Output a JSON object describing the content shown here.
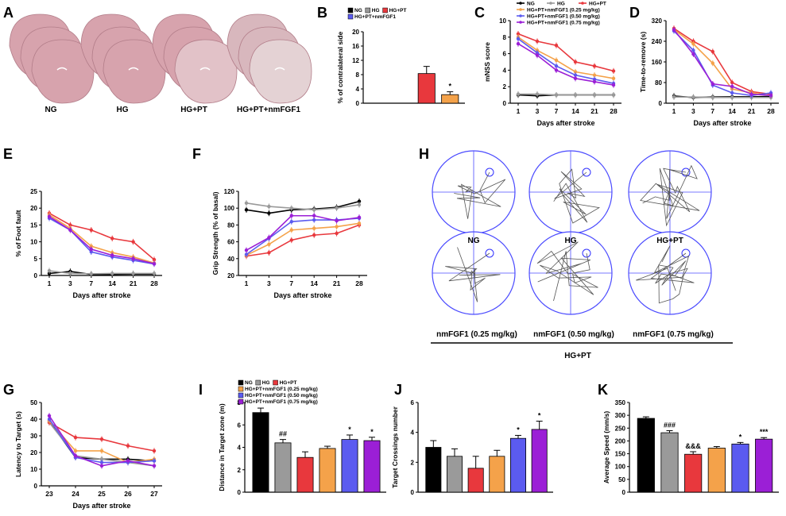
{
  "panel_letters": [
    "A",
    "B",
    "C",
    "D",
    "E",
    "F",
    "G",
    "H",
    "I",
    "J",
    "K"
  ],
  "colors": {
    "NG": "#000000",
    "HG": "#9a9a9a",
    "HGPT": "#e8383d",
    "LOW": "#f4a24a",
    "MID": "#5b5bf0",
    "HIGH": "#9b1fd6"
  },
  "legend": {
    "NG": "NG",
    "HG": "HG",
    "HGPT": "HG+PT",
    "LOW": "HG+PT+nmFGF1 (0.25 mg/kg)",
    "MID": "HG+PT+nmFGF1 (0.50 mg/kg)",
    "HIGH": "HG+PT+nmFGF1 (0.75 mg/kg)",
    "PTFGF": "HG+PT+nmFGF1"
  },
  "panelA": {
    "labels": [
      "NG",
      "HG",
      "HG+PT",
      "HG+PT+nmFGF1"
    ]
  },
  "panelH": {
    "row1": [
      "NG",
      "HG",
      "HG+PT"
    ],
    "row2": [
      "nmFGF1 (0.25 mg/kg)",
      "nmFGF1 (0.50 mg/kg)",
      "nmFGF1 (0.75 mg/kg)"
    ],
    "group": "HG+PT"
  },
  "chart_data": [
    {
      "id": "B",
      "type": "bar",
      "ylabel": "% of contralateral side",
      "ylim": [
        0,
        20
      ],
      "yticks": [
        0,
        4,
        8,
        12,
        16,
        20
      ],
      "series": [
        {
          "name": "NG",
          "value": 0
        },
        {
          "name": "HG",
          "value": 0
        },
        {
          "name": "HG+PT",
          "value": 8.3,
          "err": 2.0
        },
        {
          "name": "HG+PT+nmFGF1",
          "value": 2.4,
          "err": 0.8,
          "mark": "*"
        }
      ]
    },
    {
      "id": "C",
      "type": "line",
      "xlabel": "Days after stroke",
      "ylabel": "mNSS score",
      "ylim": [
        0,
        10
      ],
      "yticks": [
        0,
        2,
        4,
        6,
        8,
        10
      ],
      "x": [
        "1",
        "3",
        "7",
        "14",
        "21",
        "28"
      ],
      "series": [
        {
          "name": "NG",
          "values": [
            1,
            0.9,
            1,
            1,
            1,
            1
          ]
        },
        {
          "name": "HG",
          "values": [
            1.1,
            1.1,
            1,
            1,
            1,
            1
          ]
        },
        {
          "name": "HG+PT",
          "values": [
            8.4,
            7.5,
            7,
            5,
            4.5,
            3.9
          ]
        },
        {
          "name": "HG+PT+nmFGF1 (0.25 mg/kg)",
          "values": [
            8,
            6.4,
            5.2,
            3.8,
            3.4,
            3
          ]
        },
        {
          "name": "HG+PT+nmFGF1 (0.50 mg/kg)",
          "values": [
            7.8,
            6.1,
            4.5,
            3.4,
            2.9,
            2.4
          ]
        },
        {
          "name": "HG+PT+nmFGF1 (0.75 mg/kg)",
          "values": [
            7.2,
            5.8,
            4,
            3,
            2.6,
            2.2
          ]
        }
      ]
    },
    {
      "id": "D",
      "type": "line",
      "xlabel": "Days after stroke",
      "ylabel": "Time-to-remove (s)",
      "ylim": [
        0,
        320
      ],
      "yticks": [
        0,
        80,
        160,
        240,
        320
      ],
      "x": [
        "1",
        "3",
        "7",
        "14",
        "21",
        "28"
      ],
      "series": [
        {
          "name": "NG",
          "values": [
            28,
            22,
            24,
            25,
            25,
            26
          ]
        },
        {
          "name": "HG",
          "values": [
            24,
            24,
            22,
            22,
            22,
            22
          ]
        },
        {
          "name": "HG+PT",
          "values": [
            290,
            240,
            200,
            80,
            45,
            35
          ]
        },
        {
          "name": "HG+PT+nmFGF1 (0.25 mg/kg)",
          "values": [
            285,
            230,
            155,
            55,
            40,
            30
          ]
        },
        {
          "name": "HG+PT+nmFGF1 (0.50 mg/kg)",
          "values": [
            280,
            205,
            70,
            40,
            30,
            40
          ]
        },
        {
          "name": "HG+PT+nmFGF1 (0.75 mg/kg)",
          "values": [
            285,
            190,
            75,
            65,
            35,
            30
          ]
        }
      ]
    },
    {
      "id": "E",
      "type": "line",
      "xlabel": "Days after stroke",
      "ylabel": "% of Foot fault",
      "ylim": [
        0,
        25
      ],
      "yticks": [
        0,
        5,
        10,
        15,
        20,
        25
      ],
      "x": [
        "1",
        "3",
        "7",
        "14",
        "21",
        "28"
      ],
      "series": [
        {
          "name": "NG",
          "values": [
            0.6,
            1.2,
            0.3,
            0.3,
            0.4,
            0.4
          ]
        },
        {
          "name": "HG",
          "values": [
            1.4,
            0.6,
            0.5,
            0.6,
            0.6,
            0.6
          ]
        },
        {
          "name": "HG+PT",
          "values": [
            18.5,
            15,
            13.5,
            11,
            10,
            4.7
          ]
        },
        {
          "name": "HG+PT+nmFGF1 (0.25 mg/kg)",
          "values": [
            18,
            14,
            8.7,
            6.8,
            5.5,
            3.7
          ]
        },
        {
          "name": "HG+PT+nmFGF1 (0.50 mg/kg)",
          "values": [
            17,
            13.5,
            7,
            5.5,
            4.5,
            3.4
          ]
        },
        {
          "name": "HG+PT+nmFGF1 (0.75 mg/kg)",
          "values": [
            17.5,
            13.5,
            7.8,
            6,
            5,
            3.5
          ]
        }
      ]
    },
    {
      "id": "F",
      "type": "line",
      "xlabel": "Days after stroke",
      "ylabel": "Grip Strength (% of basal)",
      "ylim": [
        20,
        120
      ],
      "yticks": [
        20,
        40,
        60,
        80,
        100,
        120
      ],
      "x": [
        "1",
        "3",
        "7",
        "14",
        "21",
        "28"
      ],
      "series": [
        {
          "name": "NG",
          "values": [
            98,
            94,
            98,
            99,
            101,
            108
          ]
        },
        {
          "name": "HG",
          "values": [
            106,
            102,
            100,
            98,
            100,
            104
          ]
        },
        {
          "name": "HG+PT",
          "values": [
            43,
            47,
            62,
            68,
            70,
            80
          ]
        },
        {
          "name": "HG+PT+nmFGF1 (0.25 mg/kg)",
          "values": [
            44,
            57,
            74,
            76,
            78,
            82
          ]
        },
        {
          "name": "HG+PT+nmFGF1 (0.50 mg/kg)",
          "values": [
            45,
            64,
            84,
            86,
            86,
            88
          ]
        },
        {
          "name": "HG+PT+nmFGF1 (0.75 mg/kg)",
          "values": [
            50,
            65,
            91,
            91,
            85,
            89
          ]
        }
      ]
    },
    {
      "id": "G",
      "type": "line",
      "xlabel": "Days after stroke",
      "ylabel": "Latency to Target (s)",
      "ylim": [
        0,
        50
      ],
      "yticks": [
        0,
        10,
        20,
        30,
        40,
        50
      ],
      "x": [
        "23",
        "24",
        "25",
        "26",
        "27"
      ],
      "series": [
        {
          "name": "NG",
          "values": [
            39,
            17,
            16,
            16,
            15
          ]
        },
        {
          "name": "HG",
          "values": [
            38,
            18,
            16,
            14,
            12
          ]
        },
        {
          "name": "HG+PT",
          "values": [
            38,
            29,
            28,
            24,
            21
          ]
        },
        {
          "name": "HG+PT+nmFGF1 (0.25 mg/kg)",
          "values": [
            39,
            21,
            21,
            14,
            16
          ]
        },
        {
          "name": "HG+PT+nmFGF1 (0.50 mg/kg)",
          "values": [
            40,
            17,
            14,
            14,
            15
          ]
        },
        {
          "name": "HG+PT+nmFGF1 (0.75 mg/kg)",
          "values": [
            42,
            18,
            12,
            15,
            12
          ]
        }
      ]
    },
    {
      "id": "I",
      "type": "bar",
      "ylabel": "Distance in Target zone (m)",
      "ylim": [
        0,
        8
      ],
      "yticks": [
        0,
        2,
        4,
        6,
        8
      ],
      "series": [
        {
          "name": "NG",
          "value": 7.1,
          "err": 0.4
        },
        {
          "name": "HG",
          "value": 4.4,
          "err": 0.3,
          "mark": "##"
        },
        {
          "name": "HG+PT",
          "value": 3.1,
          "err": 0.5
        },
        {
          "name": "HG+PT+nmFGF1 (0.25 mg/kg)",
          "value": 3.9,
          "err": 0.2
        },
        {
          "name": "HG+PT+nmFGF1 (0.50 mg/kg)",
          "value": 4.7,
          "err": 0.4,
          "mark": "*"
        },
        {
          "name": "HG+PT+nmFGF1 (0.75 mg/kg)",
          "value": 4.6,
          "err": 0.3,
          "mark": "*"
        }
      ]
    },
    {
      "id": "J",
      "type": "bar",
      "ylabel": "Target Crossings number",
      "ylim": [
        0,
        6
      ],
      "yticks": [
        0,
        2,
        4,
        6
      ],
      "series": [
        {
          "name": "NG",
          "value": 3.0,
          "err": 0.45
        },
        {
          "name": "HG",
          "value": 2.4,
          "err": 0.5
        },
        {
          "name": "HG+PT",
          "value": 1.6,
          "err": 0.8
        },
        {
          "name": "HG+PT+nmFGF1 (0.25 mg/kg)",
          "value": 2.4,
          "err": 0.4
        },
        {
          "name": "HG+PT+nmFGF1 (0.50 mg/kg)",
          "value": 3.6,
          "err": 0.2,
          "mark": "*"
        },
        {
          "name": "HG+PT+nmFGF1 (0.75 mg/kg)",
          "value": 4.2,
          "err": 0.55,
          "mark": "*"
        }
      ]
    },
    {
      "id": "K",
      "type": "bar",
      "ylabel": "Average Speed (mm/s)",
      "ylim": [
        0,
        350
      ],
      "yticks": [
        0,
        50,
        100,
        150,
        200,
        250,
        300,
        350
      ],
      "series": [
        {
          "name": "NG",
          "value": 288,
          "err": 6
        },
        {
          "name": "HG",
          "value": 232,
          "err": 8,
          "mark": "###"
        },
        {
          "name": "HG+PT",
          "value": 148,
          "err": 10,
          "mark": "&&&"
        },
        {
          "name": "HG+PT+nmFGF1 (0.25 mg/kg)",
          "value": 172,
          "err": 6
        },
        {
          "name": "HG+PT+nmFGF1 (0.50 mg/kg)",
          "value": 188,
          "err": 6,
          "mark": "*"
        },
        {
          "name": "HG+PT+nmFGF1 (0.75 mg/kg)",
          "value": 207,
          "err": 6,
          "mark": "***"
        }
      ]
    }
  ]
}
